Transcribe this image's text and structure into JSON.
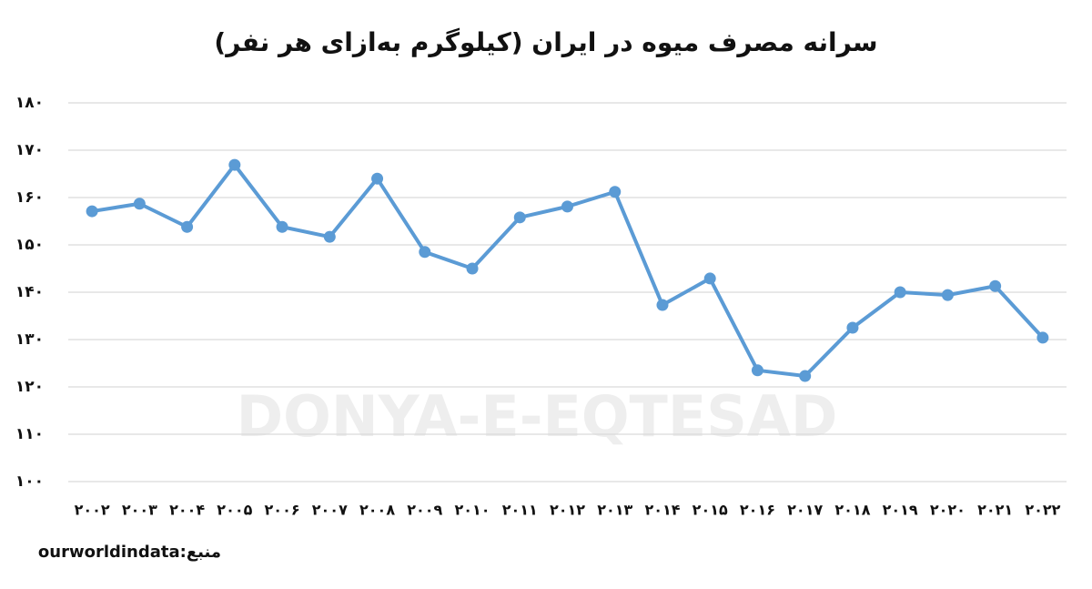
{
  "chart_data": {
    "type": "line",
    "title": "سرانه مصرف میوه در ایران (کیلوگرم به‌ازای هر نفر)",
    "categories": [
      "۲۰۰۲",
      "۲۰۰۳",
      "۲۰۰۴",
      "۲۰۰۵",
      "۲۰۰۶",
      "۲۰۰۷",
      "۲۰۰۸",
      "۲۰۰۹",
      "۲۰۱۰",
      "۲۰۱۱",
      "۲۰۱۲",
      "۲۰۱۳",
      "۲۰۱۴",
      "۲۰۱۵",
      "۲۰۱۶",
      "۲۰۱۷",
      "۲۰۱۸",
      "۲۰۱۹",
      "۲۰۲۰",
      "۲۰۲۱",
      "۲۰۲۲"
    ],
    "values": [
      157.1,
      158.7,
      153.8,
      166.9,
      153.8,
      151.7,
      164.0,
      148.5,
      145.0,
      155.8,
      158.1,
      161.2,
      137.3,
      142.9,
      123.5,
      122.3,
      132.5,
      140.0,
      139.4,
      141.3,
      130.4
    ],
    "color": "#5b9bd5",
    "ylim": [
      100,
      180
    ],
    "yticks": [
      {
        "value": 100,
        "label": "۱۰۰"
      },
      {
        "value": 110,
        "label": "۱۱۰"
      },
      {
        "value": 120,
        "label": "۱۲۰"
      },
      {
        "value": 130,
        "label": "۱۳۰"
      },
      {
        "value": 140,
        "label": "۱۴۰"
      },
      {
        "value": 150,
        "label": "۱۵۰"
      },
      {
        "value": 160,
        "label": "۱۶۰"
      },
      {
        "value": 170,
        "label": "۱۷۰"
      },
      {
        "value": 180,
        "label": "۱۸۰"
      }
    ],
    "grid": true,
    "source": "منبع:ourworldindata",
    "watermark": "DONYA-E-EQTESAD"
  }
}
